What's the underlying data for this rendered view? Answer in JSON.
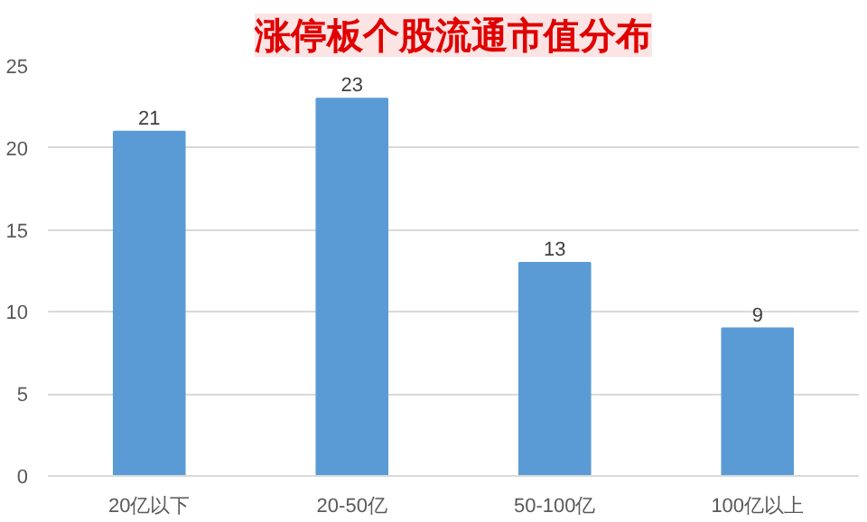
{
  "chart_data": {
    "type": "bar",
    "title": "涨停板个股流通市值分布",
    "categories": [
      "20亿以下",
      "20-50亿",
      "50-100亿",
      "100亿以上"
    ],
    "values": [
      21,
      23,
      13,
      9
    ],
    "color": "#5b9bd5",
    "ylim": [
      0,
      25
    ],
    "yticks": [
      0,
      5,
      10,
      15,
      20,
      25
    ],
    "grid": "y",
    "data_labels": true
  }
}
